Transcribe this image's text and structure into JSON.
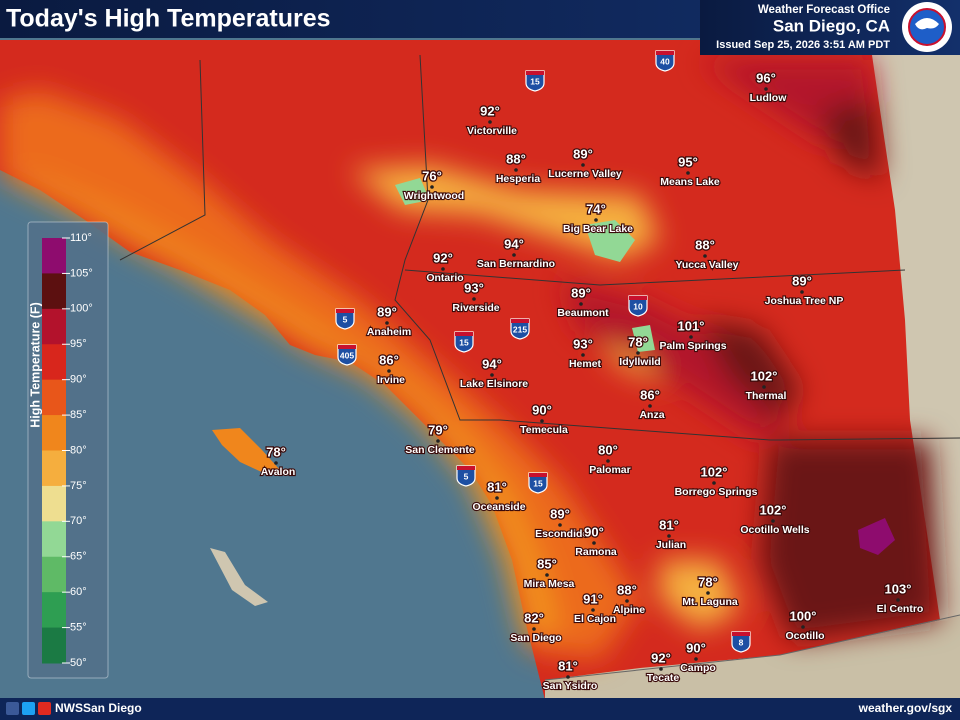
{
  "header": {
    "title": "Today's High Temperatures",
    "office": "Weather Forecast Office",
    "location": "San Diego, CA",
    "issued": "Issued Sep 25, 2026 3:51 AM PDT"
  },
  "legend": {
    "title": "High Temperature (F)",
    "ticks": [
      "110°",
      "105°",
      "100°",
      "95°",
      "90°",
      "85°",
      "80°",
      "75°",
      "70°",
      "65°",
      "60°",
      "55°",
      "50°"
    ],
    "colors": [
      "#8e0c6e",
      "#5c1010",
      "#b3122c",
      "#d8261c",
      "#e8561a",
      "#f0861c",
      "#f5ae3e",
      "#eede90",
      "#92d895",
      "#5fba66",
      "#2e9e52",
      "#1b7a44"
    ]
  },
  "cities": [
    {
      "name": "Victorville",
      "temp": "92°"
    },
    {
      "name": "Hesperia",
      "temp": "88°"
    },
    {
      "name": "Lucerne Valley",
      "temp": "89°"
    },
    {
      "name": "Means Lake",
      "temp": "95°"
    },
    {
      "name": "Ludlow",
      "temp": "96°"
    },
    {
      "name": "Wrightwood",
      "temp": "76°"
    },
    {
      "name": "Big Bear Lake",
      "temp": "74°"
    },
    {
      "name": "San Bernardino",
      "temp": "94°"
    },
    {
      "name": "Yucca Valley",
      "temp": "88°"
    },
    {
      "name": "Ontario",
      "temp": "92°"
    },
    {
      "name": "Joshua Tree NP",
      "temp": "89°"
    },
    {
      "name": "Riverside",
      "temp": "93°"
    },
    {
      "name": "Beaumont",
      "temp": "89°"
    },
    {
      "name": "Anaheim",
      "temp": "89°"
    },
    {
      "name": "Palm Springs",
      "temp": "101°"
    },
    {
      "name": "Idyllwild",
      "temp": "78°"
    },
    {
      "name": "Hemet",
      "temp": "93°"
    },
    {
      "name": "Irvine",
      "temp": "86°"
    },
    {
      "name": "Lake Elsinore",
      "temp": "94°"
    },
    {
      "name": "Thermal",
      "temp": "102°"
    },
    {
      "name": "Anza",
      "temp": "86°"
    },
    {
      "name": "Temecula",
      "temp": "90°"
    },
    {
      "name": "San Clemente",
      "temp": "79°"
    },
    {
      "name": "Palomar",
      "temp": "80°"
    },
    {
      "name": "Avalon",
      "temp": "78°"
    },
    {
      "name": "Borrego Springs",
      "temp": "102°"
    },
    {
      "name": "Oceanside",
      "temp": "81°"
    },
    {
      "name": "Ocotillo Wells",
      "temp": "102°"
    },
    {
      "name": "Escondido",
      "temp": "89°"
    },
    {
      "name": "Ramona",
      "temp": "90°"
    },
    {
      "name": "Julian",
      "temp": "81°"
    },
    {
      "name": "Mira Mesa",
      "temp": "85°"
    },
    {
      "name": "Mt. Laguna",
      "temp": "78°"
    },
    {
      "name": "Alpine",
      "temp": "88°"
    },
    {
      "name": "El Cajon",
      "temp": "91°"
    },
    {
      "name": "Ocotillo",
      "temp": "100°"
    },
    {
      "name": "El Centro",
      "temp": "103°"
    },
    {
      "name": "San Diego",
      "temp": "82°"
    },
    {
      "name": "Tecate",
      "temp": "92°"
    },
    {
      "name": "Campo",
      "temp": "90°"
    },
    {
      "name": "San Ysidro",
      "temp": "81°"
    }
  ],
  "shields": [
    "15",
    "40",
    "10",
    "5",
    "405",
    "15",
    "215",
    "5",
    "15",
    "8"
  ],
  "footer": {
    "social": "NWSSan Diego",
    "url": "weather.gov/sgx"
  }
}
